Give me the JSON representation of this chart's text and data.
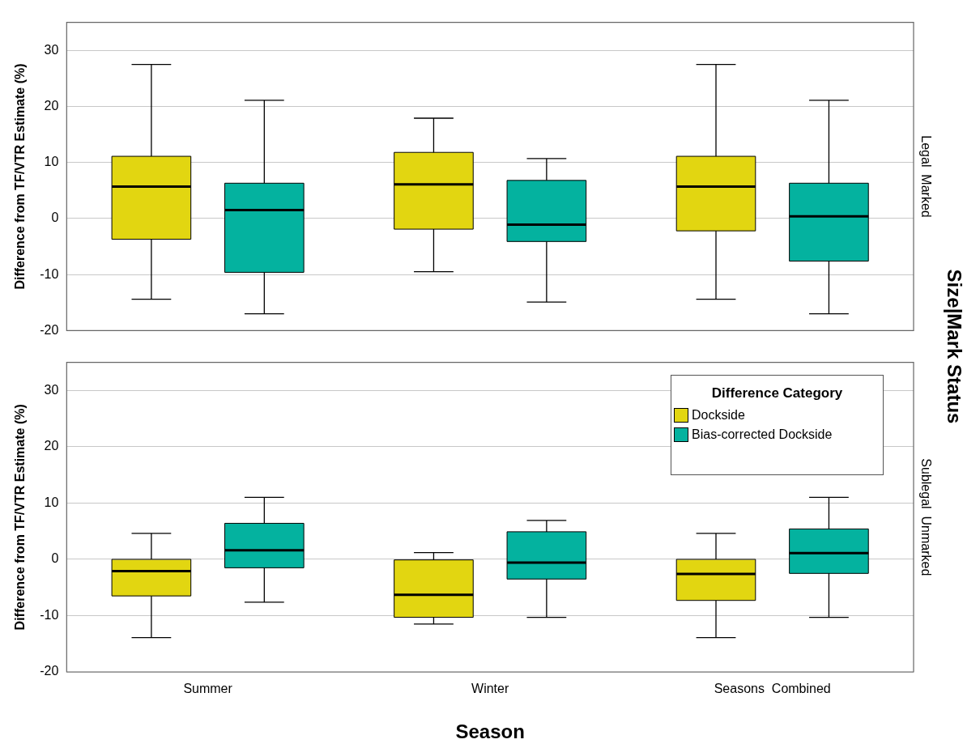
{
  "chart_data": [
    {
      "type": "box",
      "ylabel": "Difference from TF/VTR Estimate (%)",
      "y2label": "Size|Mark Status",
      "annotations": [
        "Legal  Marked"
      ],
      "categories": [
        null,
        null,
        null
      ],
      "ylim": [
        -20,
        35
      ],
      "yticks": [
        -20,
        -10,
        0,
        10,
        20,
        30
      ],
      "grid": "y",
      "tick_labels": "y",
      "legend": false,
      "series": [
        {
          "color": "#e2d611",
          "boxes": [
            {
              "low": -14.4,
              "q1": -3.7,
              "median": 5.7,
              "q3": 11.1,
              "high": 27.5
            },
            {
              "low": -9.5,
              "q1": -1.9,
              "median": 6.1,
              "q3": 11.8,
              "high": 17.9
            },
            {
              "low": -14.4,
              "q1": -2.2,
              "median": 5.7,
              "q3": 11.1,
              "high": 27.5
            }
          ]
        },
        {
          "color": "#04b29f",
          "boxes": [
            {
              "low": -17.0,
              "q1": -9.6,
              "median": 1.5,
              "q3": 6.3,
              "high": 21.1
            },
            {
              "low": -14.9,
              "q1": -4.1,
              "median": -1.1,
              "q3": 6.8,
              "high": 10.7
            },
            {
              "low": -17.0,
              "q1": -7.6,
              "median": 0.4,
              "q3": 6.3,
              "high": 21.1
            }
          ]
        }
      ]
    },
    {
      "type": "box",
      "ylabel": "Difference from TF/VTR Estimate (%)",
      "xlabel": "Season",
      "annotations": [
        "Sublegal  Unmarked"
      ],
      "categories": [
        "Summer",
        "Winter",
        "Seasons  Combined"
      ],
      "ylim": [
        -20,
        35
      ],
      "yticks": [
        -20,
        -10,
        0,
        10,
        20,
        30
      ],
      "grid": "y",
      "legend": "top right",
      "legend_title": "Difference Category",
      "series": [
        {
          "name": "Dockside",
          "color": "#e2d611",
          "boxes": [
            {
              "low": -13.9,
              "q1": -6.5,
              "median": -2.1,
              "q3": 0,
              "high": 4.6
            },
            {
              "low": -11.5,
              "q1": -10.3,
              "median": -6.3,
              "q3": -0.1,
              "high": 1.2
            },
            {
              "low": -13.9,
              "q1": -7.3,
              "median": -2.6,
              "q3": 0,
              "high": 4.6
            }
          ]
        },
        {
          "name": "Bias-corrected Dockside",
          "color": "#04b29f",
          "boxes": [
            {
              "low": -7.6,
              "q1": -1.5,
              "median": 1.6,
              "q3": 6.4,
              "high": 11.0
            },
            {
              "low": -10.3,
              "q1": -3.5,
              "median": -0.6,
              "q3": 4.9,
              "high": 6.9
            },
            {
              "low": -10.3,
              "q1": -2.5,
              "median": 1.1,
              "q3": 5.4,
              "high": 11.0
            }
          ]
        }
      ]
    }
  ]
}
